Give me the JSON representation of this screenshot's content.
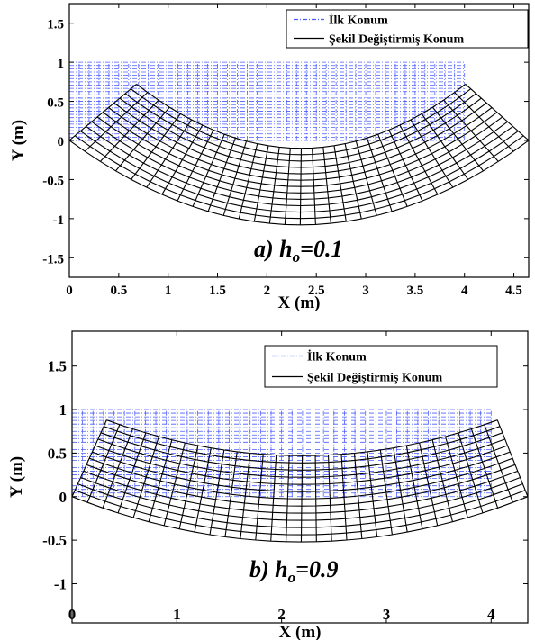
{
  "chart_data": [
    {
      "type": "line",
      "xlabel": "X (m)",
      "ylabel": "Y (m)",
      "xlim": [
        0,
        4.65
      ],
      "ylim": [
        -1.75,
        1.75
      ],
      "xticks": [
        "0",
        "0.5",
        "1",
        "1.5",
        "2",
        "2.5",
        "3",
        "3.5",
        "4",
        "4.5"
      ],
      "yticks": [
        "1.5",
        "1",
        "0.5",
        "0",
        "-0.5",
        "-1",
        "-1.5"
      ],
      "legend": {
        "position": "top-right",
        "entries": [
          "İlk Konum",
          "Şekil Değiştirmiş Konum"
        ]
      },
      "annotation": {
        "prefix": "a) h",
        "subscript": "o",
        "suffix": "=0.1"
      },
      "series": [
        {
          "name": "İlk Konum",
          "style": "dash-dot",
          "color": "#4b5cff",
          "x_range": [
            0,
            4.0
          ],
          "y_range": [
            0,
            1.0
          ]
        },
        {
          "name": "Şekil Değiştirmiş Konum",
          "style": "solid",
          "color": "#000000",
          "outer_corners": [
            [
              0.68,
              0.72
            ],
            [
              4.01,
              0.72
            ]
          ],
          "top_center": [
            2.35,
            -0.1
          ],
          "bottom_center": [
            2.35,
            -1.08
          ],
          "support_points": [
            [
              0.0,
              0.0
            ],
            [
              4.65,
              0.0
            ]
          ]
        }
      ]
    },
    {
      "type": "line",
      "xlabel": "X (m)",
      "ylabel": "Y (m)",
      "xlim": [
        0,
        4.35
      ],
      "ylim": [
        -1.45,
        1.9
      ],
      "xticks": [
        "0",
        "1",
        "2",
        "3",
        "4"
      ],
      "yticks": [
        "1.5",
        "1",
        "0.5",
        "0",
        "-0.5",
        "-1"
      ],
      "legend": {
        "position": "top-right",
        "entries": [
          "İlk Konum",
          "Şekil Değiştirmiş Konum"
        ]
      },
      "annotation": {
        "prefix": "b) h",
        "subscript": "o",
        "suffix": "=0.9"
      },
      "series": [
        {
          "name": "İlk Konum",
          "style": "dash-dot",
          "color": "#4b5cff",
          "x_range": [
            0,
            4.0
          ],
          "y_range": [
            0,
            1.0
          ]
        },
        {
          "name": "Şekil Değiştirmiş Konum",
          "style": "solid",
          "color": "#000000",
          "outer_corners": [
            [
              0.33,
              0.88
            ],
            [
              4.06,
              0.88
            ]
          ],
          "top_center": [
            2.2,
            0.47
          ],
          "bottom_center": [
            2.2,
            -0.52
          ],
          "support_points": [
            [
              0.0,
              0.0
            ],
            [
              4.35,
              0.0
            ]
          ]
        }
      ]
    }
  ]
}
